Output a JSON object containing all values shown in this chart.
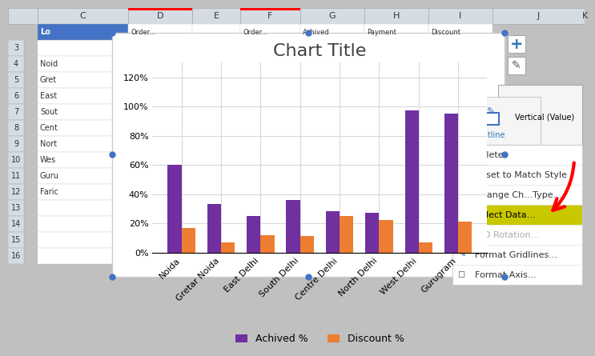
{
  "title": "Chart Title",
  "categories": [
    "Noida",
    "Gretar Noida",
    "East Delhi",
    "South Delhi",
    "Centre Delhi",
    "North Delhi",
    "West Delhi",
    "Gurugram"
  ],
  "achieved": [
    0.6,
    0.33,
    0.25,
    0.36,
    0.28,
    0.27,
    0.97,
    0.95
  ],
  "discount": [
    0.17,
    0.07,
    0.12,
    0.11,
    0.25,
    0.22,
    0.07,
    0.21
  ],
  "achieved_color": "#7030A0",
  "discount_color": "#ED7D31",
  "achieved_label": "Achived %",
  "discount_label": "Discount %",
  "ylim": [
    0,
    1.3
  ],
  "yticks": [
    0,
    0.2,
    0.4,
    0.6,
    0.8,
    1.0,
    1.2
  ],
  "ytick_labels": [
    "0%",
    "20%",
    "40%",
    "60%",
    "80%",
    "100%",
    "120%"
  ],
  "title_fontsize": 16,
  "tick_fontsize": 8,
  "legend_fontsize": 9,
  "bar_width": 0.35,
  "grid_color": "#D9D9D9",
  "col_labels": [
    "C",
    "D",
    "E",
    "F",
    "G",
    "H",
    "I",
    "J",
    "K"
  ],
  "row_labels": [
    "3",
    "4",
    "5",
    "6",
    "7",
    "8",
    "9",
    "10",
    "11",
    "12",
    "13",
    "14",
    "15",
    "16"
  ],
  "row_data": [
    "",
    "Noid",
    "Gret",
    "East",
    "Sout",
    "Cent",
    "Nort",
    "Wes",
    "Guru",
    "Faric",
    "",
    "",
    "",
    ""
  ],
  "col2_data": [
    "Lo",
    "",
    "",
    "",
    "",
    "",
    "",
    "",
    "",
    "",
    "",
    "",
    "",
    ""
  ],
  "excel_header_color": "#D6DCE4",
  "excel_row_header_color": "#D6DCE4",
  "excel_bg": "#FFFFFF",
  "excel_selected_col_color": "#BDD7EE",
  "excel_selected_row_color": "#BDD7EE",
  "menu_items": [
    "Delete",
    "Reset to Match Style",
    "Change Ch...Type...",
    "Select Data...",
    "3-D Rotation...",
    "Format Gridlines...",
    "Format Axis..."
  ],
  "menu_highlighted": 3,
  "menu_greyed": 4,
  "menu_highlight_color": "#C8C800",
  "menu_bg": "#F2F2F2",
  "menu_border": "#CCCCCC"
}
